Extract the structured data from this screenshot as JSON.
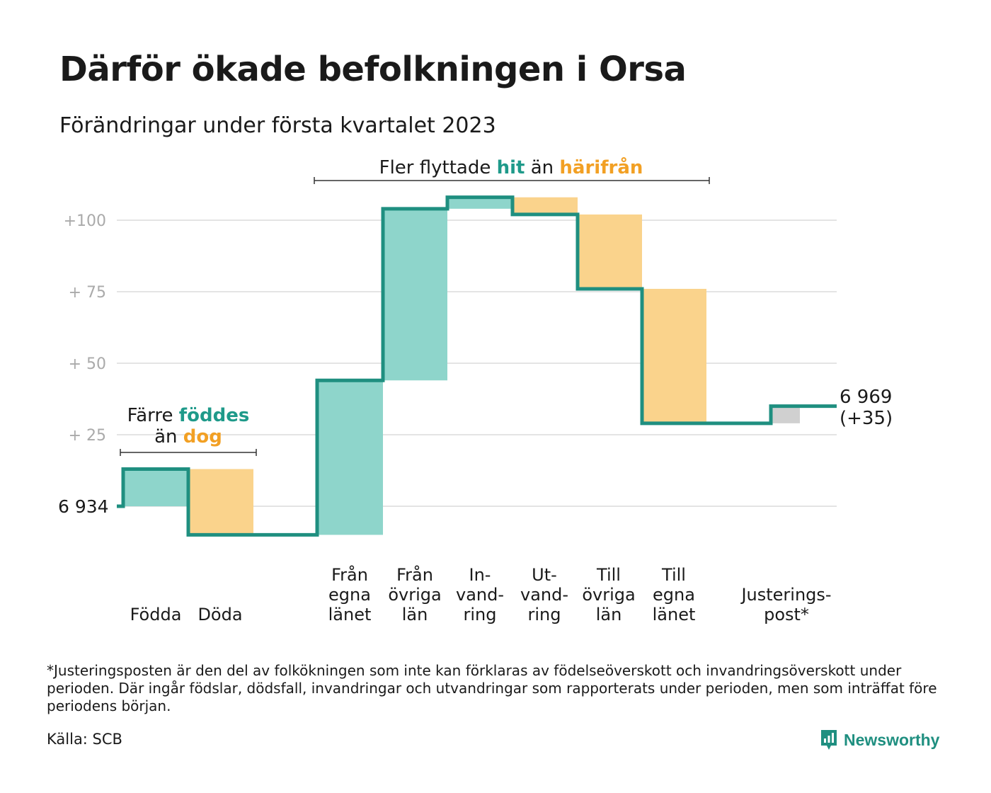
{
  "title": "Därför ökade befolkningen i Orsa",
  "subtitle": "Förändringar under första kvartalet 2023",
  "colors": {
    "increase": "#8ed5cb",
    "decrease": "#fad38c",
    "adjustment": "#d0d0d0",
    "line": "#1f8f80",
    "accent_hit": "#1f9a8a",
    "accent_away": "#f2a024",
    "grid": "#e4e4e4",
    "tick": "#aaaaaa"
  },
  "chart_data": {
    "type": "waterfall",
    "start": {
      "label": "6 934",
      "value": 0
    },
    "end": {
      "label_line1": "6 969",
      "label_line2": "(+35)",
      "value": 35
    },
    "y_ticks": [
      {
        "value": 25,
        "label": "+ 25"
      },
      {
        "value": 50,
        "label": "+ 50"
      },
      {
        "value": 75,
        "label": "+ 75"
      },
      {
        "value": 100,
        "label": "+100"
      }
    ],
    "grid": true,
    "steps": [
      {
        "label": [
          "Födda"
        ],
        "change": 13,
        "from": 0,
        "to": 13
      },
      {
        "label": [
          "Döda"
        ],
        "change": -23,
        "from": 13,
        "to": -10
      },
      {
        "label": [
          "Från",
          "egna",
          "länet"
        ],
        "change": 54,
        "from": -10,
        "to": 44
      },
      {
        "label": [
          "Från",
          "övriga",
          "län"
        ],
        "change": 60,
        "from": 44,
        "to": 104
      },
      {
        "label": [
          "In-",
          "vand-",
          "ring"
        ],
        "change": 4,
        "from": 104,
        "to": 108
      },
      {
        "label": [
          "Ut-",
          "vand-",
          "ring"
        ],
        "change": -6,
        "from": 108,
        "to": 102
      },
      {
        "label": [
          "Till",
          "övriga",
          "län"
        ],
        "change": -26,
        "from": 102,
        "to": 76
      },
      {
        "label": [
          "Till",
          "egna",
          "länet"
        ],
        "change": -47,
        "from": 76,
        "to": 29
      },
      {
        "label": [
          "Justerings-",
          "post*"
        ],
        "change": 6,
        "from": 29,
        "to": 35
      }
    ],
    "annotations": [
      {
        "parts": [
          {
            "text": "Färre ",
            "style": "normal"
          },
          {
            "text": "föddes",
            "style": "hit"
          }
        ],
        "parts2": [
          {
            "text": "än ",
            "style": "normal"
          },
          {
            "text": "dog",
            "style": "away"
          }
        ]
      },
      {
        "parts": [
          {
            "text": "Fler flyttade ",
            "style": "normal"
          },
          {
            "text": "hit",
            "style": "hit"
          },
          {
            "text": " än ",
            "style": "normal"
          },
          {
            "text": "härifrån",
            "style": "away"
          }
        ]
      }
    ]
  },
  "footnote": "*Justeringsposten är den del av folkökningen som inte kan förklaras av födelseöverskott och invandringsöverskott under perioden. Där ingår födslar, dödsfall, invandringar och utvandringar som rapporterats under perioden, men som inträffat före periodens början.",
  "source": "Källa: SCB",
  "brand": {
    "name": "Newsworthy",
    "icon": "newsworthy-logo-icon"
  }
}
